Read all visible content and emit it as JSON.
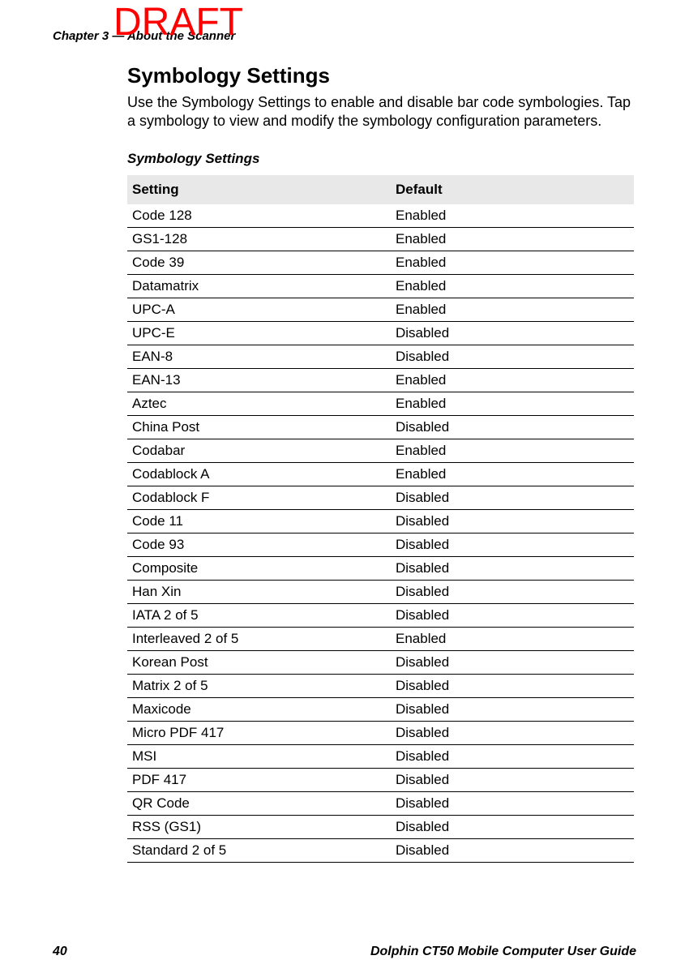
{
  "watermark": "DRAFT",
  "chapter_header": "Chapter 3 — About the Scanner",
  "section": {
    "title": "Symbology Settings",
    "description": "Use the Symbology Settings to enable and disable bar code symbologies. Tap a symbology to view and modify the symbology configuration parameters."
  },
  "table": {
    "title": "Symbology Settings",
    "columns": [
      "Setting",
      "Default"
    ],
    "rows": [
      [
        "Code 128",
        "Enabled"
      ],
      [
        "GS1-128",
        "Enabled"
      ],
      [
        "Code 39",
        "Enabled"
      ],
      [
        "Datamatrix",
        "Enabled"
      ],
      [
        "UPC-A",
        "Enabled"
      ],
      [
        "UPC-E",
        "Disabled"
      ],
      [
        "EAN-8",
        "Disabled"
      ],
      [
        "EAN-13",
        "Enabled"
      ],
      [
        "Aztec",
        "Enabled"
      ],
      [
        "China Post",
        "Disabled"
      ],
      [
        "Codabar",
        "Enabled"
      ],
      [
        "Codablock A",
        "Enabled"
      ],
      [
        "Codablock F",
        "Disabled"
      ],
      [
        "Code 11",
        "Disabled"
      ],
      [
        "Code 93",
        "Disabled"
      ],
      [
        "Composite",
        "Disabled"
      ],
      [
        "Han Xin",
        "Disabled"
      ],
      [
        "IATA 2 of 5",
        "Disabled"
      ],
      [
        "Interleaved 2 of 5",
        "Enabled"
      ],
      [
        "Korean Post",
        "Disabled"
      ],
      [
        "Matrix 2 of 5",
        "Disabled"
      ],
      [
        "Maxicode",
        "Disabled"
      ],
      [
        "Micro PDF 417",
        "Disabled"
      ],
      [
        "MSI",
        "Disabled"
      ],
      [
        "PDF 417",
        "Disabled"
      ],
      [
        "QR Code",
        "Disabled"
      ],
      [
        "RSS (GS1)",
        "Disabled"
      ],
      [
        "Standard 2 of 5",
        "Disabled"
      ]
    ]
  },
  "footer": {
    "page_number": "40",
    "title": "Dolphin CT50 Mobile Computer User Guide"
  }
}
